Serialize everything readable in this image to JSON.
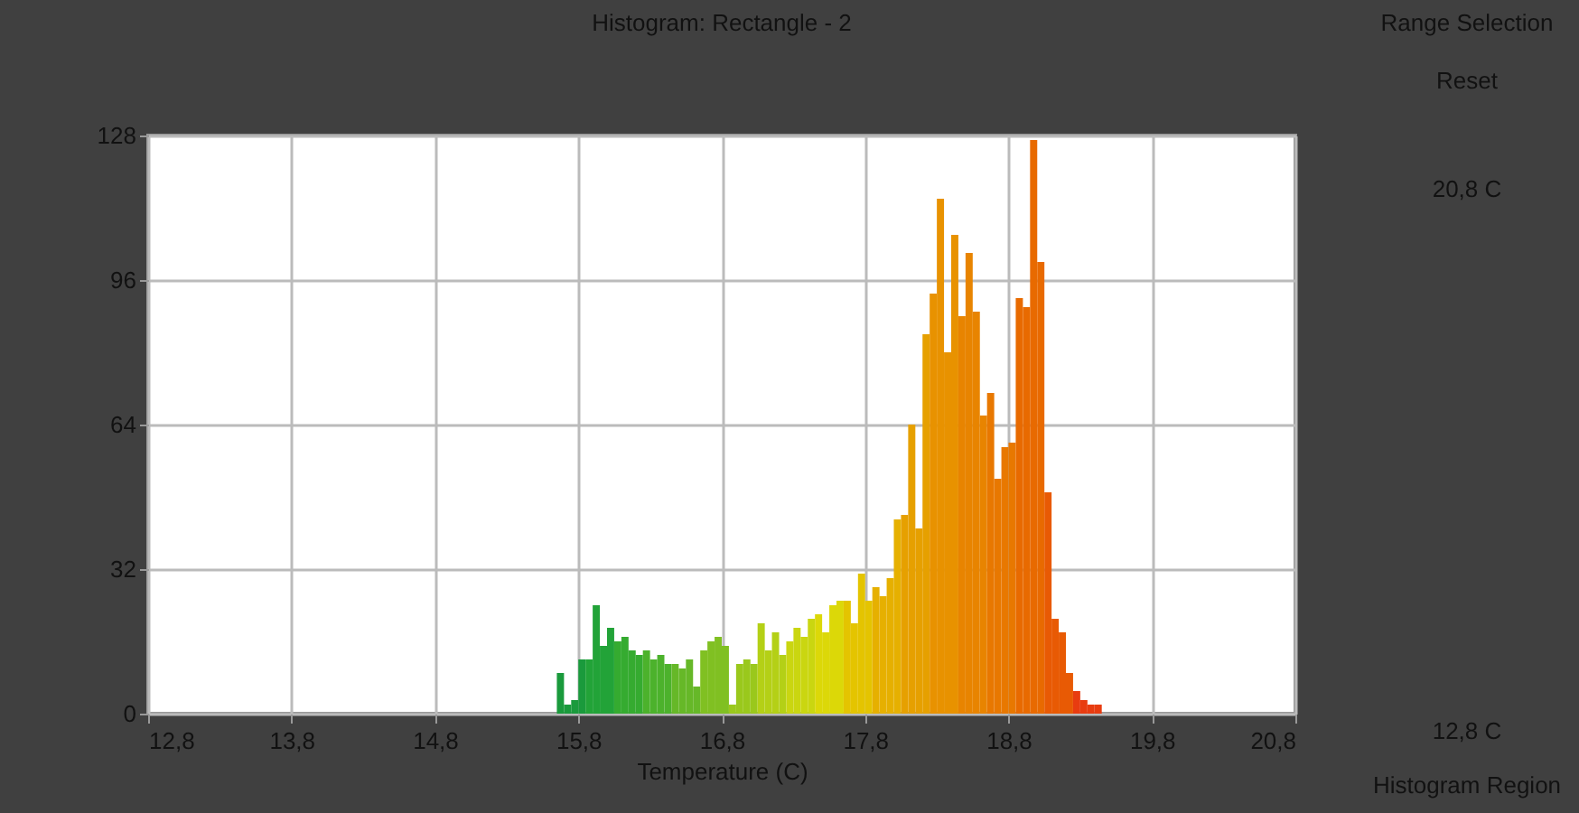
{
  "chart_data": {
    "type": "histogram",
    "title": "Histogram: Rectangle - 2",
    "xlabel": "Temperature (C)",
    "bins": [
      15.65,
      15.7,
      15.75,
      15.8,
      15.85,
      15.9,
      15.95,
      16.0,
      16.05,
      16.1,
      16.15,
      16.2,
      16.25,
      16.3,
      16.35,
      16.4,
      16.45,
      16.5,
      16.55,
      16.6,
      16.65,
      16.7,
      16.75,
      16.8,
      16.85,
      16.9,
      16.95,
      17.0,
      17.05,
      17.1,
      17.15,
      17.2,
      17.25,
      17.3,
      17.35,
      17.4,
      17.45,
      17.5,
      17.55,
      17.6,
      17.65,
      17.7,
      17.75,
      17.8,
      17.85,
      17.9,
      17.95,
      18.0,
      18.05,
      18.1,
      18.15,
      18.2,
      18.25,
      18.3,
      18.35,
      18.4,
      18.45,
      18.5,
      18.55,
      18.6,
      18.65,
      18.7,
      18.75,
      18.8,
      18.85,
      18.9,
      18.95,
      19.0,
      19.05,
      19.1,
      19.15,
      19.2,
      19.25,
      19.3,
      19.35,
      19.4,
      19.45
    ],
    "values": [
      9,
      2,
      3,
      12,
      12,
      24,
      15,
      19,
      16,
      17,
      14,
      13,
      14,
      12,
      13,
      11,
      11,
      10,
      12,
      6,
      14,
      16,
      17,
      15,
      2,
      11,
      12,
      11,
      20,
      14,
      18,
      13,
      16,
      19,
      17,
      21,
      22,
      18,
      24,
      25,
      25,
      20,
      31,
      25,
      28,
      26,
      30,
      43,
      44,
      64,
      41,
      84,
      93,
      114,
      80,
      106,
      88,
      102,
      89,
      66,
      71,
      52,
      59,
      60,
      92,
      90,
      127,
      100,
      49,
      21,
      18,
      9,
      5,
      3,
      2,
      2
    ],
    "colors": [
      "#1a9a3c",
      "#1a9a3c",
      "#1a9a3c",
      "#1a9a3c",
      "#22a338",
      "#22a338",
      "#22a338",
      "#22a338",
      "#35ab30",
      "#35ab30",
      "#35ab30",
      "#35ab30",
      "#4cb22c",
      "#4cb22c",
      "#4cb22c",
      "#4cb22c",
      "#66b828",
      "#66b828",
      "#66b828",
      "#66b828",
      "#80c022",
      "#80c022",
      "#80c022",
      "#80c022",
      "#9ac81c",
      "#9ac81c",
      "#9ac81c",
      "#9ac81c",
      "#b4d016",
      "#b4d016",
      "#b4d016",
      "#b4d016",
      "#cad610",
      "#cad610",
      "#cad610",
      "#cad610",
      "#dcd808",
      "#dcd808",
      "#dcd808",
      "#dcd808",
      "#e4c400",
      "#e4c400",
      "#e4c400",
      "#e4c400",
      "#e6b000",
      "#e6b000",
      "#e6b000",
      "#e6b000",
      "#e6a000",
      "#e6a000",
      "#e6a000",
      "#e6a000",
      "#e89200",
      "#e89200",
      "#e89200",
      "#e89200",
      "#e88400",
      "#e88400",
      "#e88400",
      "#e88400",
      "#e87800",
      "#e87800",
      "#e87800",
      "#e87800",
      "#e86a00",
      "#e86a00",
      "#e86a00",
      "#e86a00",
      "#e85a04",
      "#e85a04",
      "#e85a04",
      "#e85a04",
      "#e83c10",
      "#e83c10",
      "#e83c10",
      "#e83c10"
    ],
    "xlim": [
      12.8,
      20.8
    ],
    "xticks": [
      {
        "value": 12.8,
        "label": "12,8"
      },
      {
        "value": 13.8,
        "label": "13,8"
      },
      {
        "value": 14.8,
        "label": "14,8"
      },
      {
        "value": 15.8,
        "label": "15,8"
      },
      {
        "value": 16.8,
        "label": "16,8"
      },
      {
        "value": 17.8,
        "label": "17,8"
      },
      {
        "value": 18.8,
        "label": "18,8"
      },
      {
        "value": 19.8,
        "label": "19,8"
      },
      {
        "value": 20.8,
        "label": "20,8"
      }
    ],
    "ylim": [
      0,
      128
    ],
    "yticks": [
      0,
      32,
      64,
      96,
      128
    ],
    "grid": true,
    "annotations": [
      "Range Selection",
      "Reset",
      "20,8 C",
      "12,8 C",
      "Histogram Region"
    ]
  }
}
